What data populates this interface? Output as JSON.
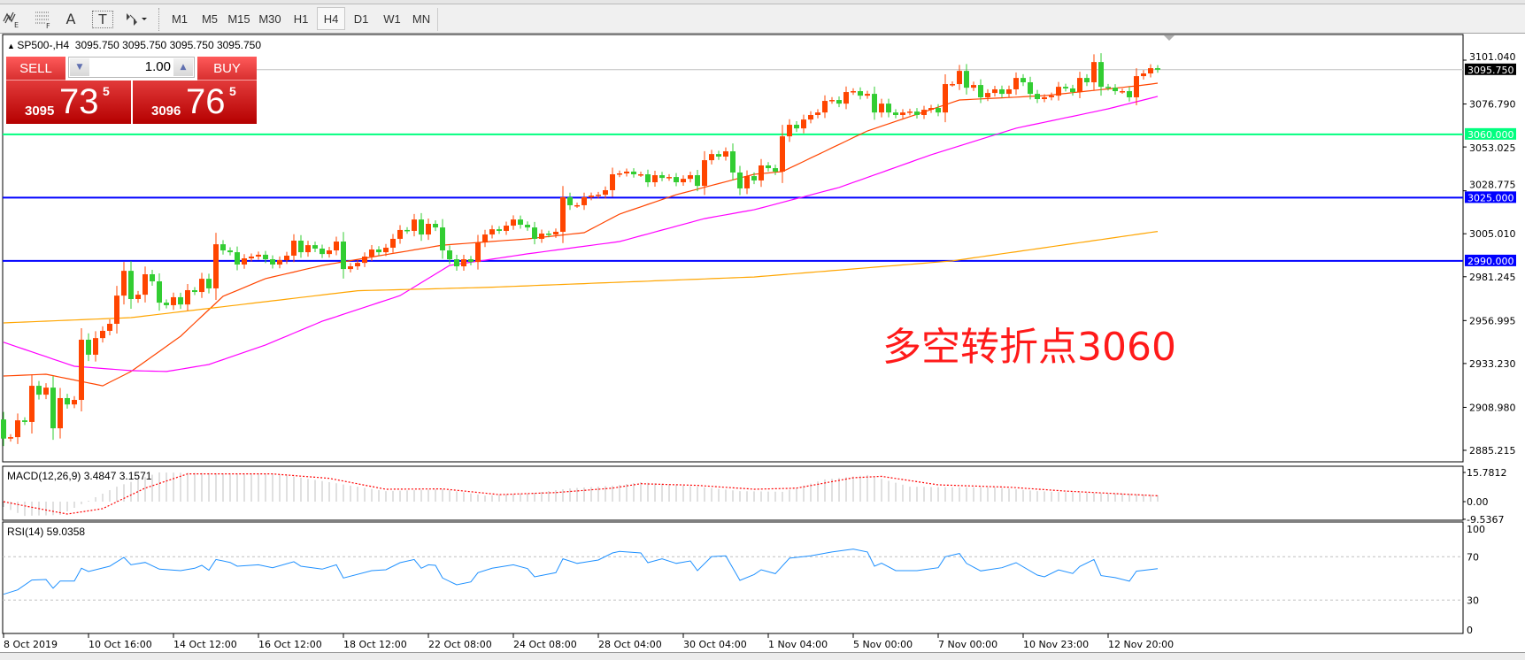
{
  "toolbar": {
    "icons": [
      "elliott-wave-icon",
      "fibonacci-icon",
      "text-label-icon",
      "text-box-icon",
      "arrows-dropdown-icon"
    ],
    "text_icon_label": "A",
    "textbox_icon_label": "T",
    "timeframes": [
      "M1",
      "M5",
      "M15",
      "M30",
      "H1",
      "H4",
      "D1",
      "W1",
      "MN"
    ],
    "active_timeframe": "H4"
  },
  "chart": {
    "title": "SP500-,H4  3095.750 3095.750 3095.750 3095.750",
    "symbol": "SP500-",
    "period": "H4",
    "overlay_text": "多空转折点3060"
  },
  "trade_panel": {
    "sell_label": "SELL",
    "buy_label": "BUY",
    "lot": "1.00",
    "sell_price": {
      "prefix": "3095",
      "big": "73",
      "sup": "5"
    },
    "buy_price": {
      "prefix": "3096",
      "big": "76",
      "sup": "5"
    }
  },
  "colors": {
    "bull_candle": "#ff4500",
    "bear_candle": "#32cd32",
    "ma_fast": "#ff4500",
    "ma_mid": "#ff00ff",
    "ma_slow": "#ffa500",
    "level_3060": "#00ff7f",
    "level_blue": "#0000ff",
    "macd_hist": "#c0c0c0",
    "macd_signal": "#ff0000",
    "rsi_line": "#1e90ff"
  },
  "chart_data": [
    {
      "type": "candlestick",
      "title": "SP500-,H4",
      "first_open": 2902.3,
      "closes": [
        2891.7,
        2892.5,
        2901.8,
        2900.9,
        2920.9,
        2916.0,
        2919.9,
        2897.4,
        2914.1,
        2910.6,
        2913.1,
        2946.4,
        2938.1,
        2947.3,
        2951.3,
        2955.2,
        2970.8,
        2984.5,
        2968.9,
        2971.3,
        2982.6,
        2978.7,
        2966.9,
        2965.5,
        2969.9,
        2965.9,
        2973.8,
        2972.8,
        2980.1,
        2974.8,
        2999.2,
        2995.8,
        2994.8,
        2988.0,
        2991.4,
        2992.4,
        2993.4,
        2990.9,
        2988.0,
        2990.4,
        2992.9,
        3001.2,
        2994.8,
        2998.7,
        2996.8,
        2993.8,
        2995.8,
        3000.7,
        2985.5,
        2987.0,
        2988.9,
        2992.4,
        2996.3,
        2994.8,
        2997.3,
        3002.2,
        3007.1,
        3006.6,
        3012.9,
        3004.6,
        3010.5,
        3008.5,
        2995.8,
        2990.9,
        2987.0,
        2990.9,
        2989.4,
        3000.2,
        3004.6,
        3007.5,
        3006.6,
        3009.5,
        3012.9,
        3010.0,
        3008.5,
        3002.2,
        3005.1,
        3004.6,
        3006.1,
        3025.2,
        3020.8,
        3020.8,
        3025.2,
        3026.1,
        3026.6,
        3029.1,
        3037.9,
        3038.4,
        3039.4,
        3037.9,
        3037.9,
        3033.5,
        3037.4,
        3035.9,
        3036.4,
        3033.5,
        3035.4,
        3037.4,
        3031.5,
        3045.7,
        3049.1,
        3047.7,
        3050.6,
        3038.9,
        3030.1,
        3036.9,
        3034.5,
        3042.8,
        3041.3,
        3039.4,
        3058.9,
        3065.3,
        3063.3,
        3068.2,
        3070.7,
        3072.1,
        3078.5,
        3079.0,
        3077.0,
        3083.4,
        3083.9,
        3081.4,
        3082.4,
        3072.1,
        3077.0,
        3072.1,
        3070.7,
        3072.1,
        3072.6,
        3070.7,
        3073.6,
        3074.6,
        3072.1,
        3087.8,
        3087.8,
        3095.1,
        3085.8,
        3087.3,
        3080.5,
        3082.9,
        3084.9,
        3082.4,
        3084.9,
        3091.2,
        3088.8,
        3082.4,
        3079.5,
        3080.5,
        3081.4,
        3086.3,
        3085.4,
        3083.4,
        3091.2,
        3088.8,
        3100.0,
        3086.3,
        3085.8,
        3083.9,
        3083.9,
        3080.5,
        3092.2,
        3093.7,
        3096.6,
        3095.75
      ],
      "moving_averages": [
        {
          "color_key": "ma_fast",
          "points": [
            [
              0,
              2926.3
            ],
            [
              6,
              2927.3
            ],
            [
              14,
              2920.9
            ],
            [
              18,
              2928.8
            ],
            [
              25,
              2948.3
            ],
            [
              31,
              2970.4
            ],
            [
              37,
              2980.2
            ],
            [
              45,
              2987.5
            ],
            [
              56,
              2994.8
            ],
            [
              62,
              2998.7
            ],
            [
              74,
              3002.2
            ],
            [
              82,
              3005.6
            ],
            [
              87,
              3015.9
            ],
            [
              95,
              3026.6
            ],
            [
              106,
              3037.9
            ],
            [
              110,
              3039.4
            ],
            [
              122,
              3061.9
            ],
            [
              135,
              3079.0
            ],
            [
              147,
              3081.4
            ],
            [
              160,
              3086.8
            ],
            [
              163,
              3088.3
            ]
          ]
        },
        {
          "color_key": "ma_mid",
          "points": [
            [
              0,
              2945.0
            ],
            [
              10,
              2931.7
            ],
            [
              18,
              2929.3
            ],
            [
              23,
              2928.8
            ],
            [
              29,
              2932.7
            ],
            [
              37,
              2943.5
            ],
            [
              45,
              2956.6
            ],
            [
              56,
              2970.8
            ],
            [
              63,
              2987.5
            ],
            [
              74,
              2993.9
            ],
            [
              87,
              3000.7
            ],
            [
              99,
              3013.4
            ],
            [
              106,
              3018.3
            ],
            [
              118,
              3030.6
            ],
            [
              131,
              3048.7
            ],
            [
              143,
              3063.4
            ],
            [
              156,
              3074.1
            ],
            [
              163,
              3081.0
            ]
          ]
        },
        {
          "color_key": "ma_slow",
          "points": [
            [
              0,
              2955.7
            ],
            [
              18,
              2958.6
            ],
            [
              50,
              2973.5
            ],
            [
              68,
              2975.3
            ],
            [
              87,
              2978.2
            ],
            [
              106,
              2981.1
            ],
            [
              134,
              2990.0
            ],
            [
              163,
              3006.3
            ]
          ]
        }
      ],
      "levels": [
        {
          "value": 3095.75,
          "label": "3095.750",
          "kind": "bid"
        },
        {
          "value": 3060.0,
          "label": "3060.000",
          "color_key": "level_3060"
        },
        {
          "value": 3025.0,
          "label": "3025.000",
          "color_key": "level_blue"
        },
        {
          "value": 2990.0,
          "label": "2990.000",
          "color_key": "level_blue"
        }
      ],
      "y_ticks": [
        "3101.040",
        "3076.790",
        "3053.025",
        "3028.775",
        "3005.010",
        "2981.245",
        "2956.995",
        "2933.230",
        "2908.980",
        "2885.215"
      ],
      "x_ticks": [
        {
          "bar": 0,
          "label": "8 Oct 2019"
        },
        {
          "bar": 12,
          "label": "10 Oct 16:00"
        },
        {
          "bar": 24,
          "label": "14 Oct 12:00"
        },
        {
          "bar": 36,
          "label": "16 Oct 12:00"
        },
        {
          "bar": 48,
          "label": "18 Oct 12:00"
        },
        {
          "bar": 60,
          "label": "22 Oct 08:00"
        },
        {
          "bar": 72,
          "label": "24 Oct 08:00"
        },
        {
          "bar": 84,
          "label": "28 Oct 04:00"
        },
        {
          "bar": 96,
          "label": "30 Oct 04:00"
        },
        {
          "bar": 108,
          "label": "1 Nov 04:00"
        },
        {
          "bar": 120,
          "label": "5 Nov 00:00"
        },
        {
          "bar": 132,
          "label": "7 Nov 00:00"
        },
        {
          "bar": 144,
          "label": "10 Nov 23:00"
        },
        {
          "bar": 156,
          "label": "12 Nov 20:00"
        }
      ]
    },
    {
      "type": "bar",
      "title": "MACD(12,26,9) 3.4847 3.1571",
      "ylim": [
        -9.5367,
        15.7812
      ],
      "y_ticks": [
        "15.7812",
        "0.00",
        "-9.5367"
      ],
      "histogram": [
        [
          0,
          -2.9
        ],
        [
          3,
          -7.7
        ],
        [
          8,
          -7.2
        ],
        [
          11,
          -1.4
        ],
        [
          16,
          8.1
        ],
        [
          22,
          15.8
        ],
        [
          30,
          15.3
        ],
        [
          38,
          15.3
        ],
        [
          46,
          10.5
        ],
        [
          54,
          5.7
        ],
        [
          62,
          6.7
        ],
        [
          68,
          3.3
        ],
        [
          74,
          4.3
        ],
        [
          80,
          7.2
        ],
        [
          86,
          8.6
        ],
        [
          90,
          10.5
        ],
        [
          98,
          8.1
        ],
        [
          104,
          5.7
        ],
        [
          110,
          5.3
        ],
        [
          116,
          12.0
        ],
        [
          122,
          14.4
        ],
        [
          128,
          8.1
        ],
        [
          134,
          7.7
        ],
        [
          140,
          7.7
        ],
        [
          146,
          5.7
        ],
        [
          152,
          4.8
        ],
        [
          158,
          4.3
        ],
        [
          163,
          3.4847
        ]
      ],
      "signal": [
        [
          0,
          0
        ],
        [
          5,
          -3.8
        ],
        [
          9,
          -6.7
        ],
        [
          14,
          -3.8
        ],
        [
          20,
          7.3
        ],
        [
          26,
          15.0
        ],
        [
          38,
          15.0
        ],
        [
          46,
          12.6
        ],
        [
          54,
          6.7
        ],
        [
          62,
          6.9
        ],
        [
          70,
          3.8
        ],
        [
          78,
          4.9
        ],
        [
          86,
          7.3
        ],
        [
          90,
          9.7
        ],
        [
          98,
          8.8
        ],
        [
          106,
          6.7
        ],
        [
          112,
          7.3
        ],
        [
          120,
          12.9
        ],
        [
          124,
          13.7
        ],
        [
          132,
          9.1
        ],
        [
          142,
          7.8
        ],
        [
          150,
          5.7
        ],
        [
          163,
          3.1571
        ]
      ]
    },
    {
      "type": "line",
      "title": "RSI(14) 59.0358",
      "ylim": [
        0,
        100
      ],
      "y_ticks": [
        "100",
        "70",
        "30",
        "0"
      ],
      "levels": [
        70,
        30
      ],
      "values": [
        [
          0,
          35.4
        ],
        [
          2,
          39.5
        ],
        [
          4,
          48.5
        ],
        [
          6,
          49.0
        ],
        [
          7,
          40.9
        ],
        [
          8,
          47.6
        ],
        [
          10,
          47.6
        ],
        [
          11,
          59.4
        ],
        [
          12,
          56.4
        ],
        [
          15,
          61.3
        ],
        [
          17,
          69.4
        ],
        [
          18,
          62.6
        ],
        [
          20,
          64.8
        ],
        [
          22,
          58.6
        ],
        [
          25,
          57.2
        ],
        [
          27,
          59.4
        ],
        [
          28,
          62.1
        ],
        [
          29,
          57.6
        ],
        [
          30,
          67.5
        ],
        [
          32,
          64.8
        ],
        [
          33,
          61.3
        ],
        [
          36,
          62.6
        ],
        [
          38,
          59.9
        ],
        [
          41,
          65.4
        ],
        [
          42,
          61.3
        ],
        [
          45,
          58.6
        ],
        [
          47,
          62.6
        ],
        [
          48,
          50.4
        ],
        [
          52,
          57.2
        ],
        [
          54,
          58.0
        ],
        [
          56,
          64.5
        ],
        [
          58,
          67.5
        ],
        [
          59,
          59.4
        ],
        [
          60,
          62.6
        ],
        [
          61,
          62.1
        ],
        [
          62,
          50.4
        ],
        [
          64,
          44.1
        ],
        [
          66,
          46.8
        ],
        [
          67,
          55.3
        ],
        [
          69,
          59.4
        ],
        [
          72,
          62.6
        ],
        [
          74,
          59.1
        ],
        [
          75,
          51.5
        ],
        [
          78,
          55.3
        ],
        [
          79,
          68.1
        ],
        [
          81,
          63.9
        ],
        [
          84,
          67.0
        ],
        [
          86,
          73.5
        ],
        [
          87,
          74.9
        ],
        [
          90,
          73.5
        ],
        [
          91,
          64.5
        ],
        [
          93,
          68.1
        ],
        [
          95,
          63.9
        ],
        [
          97,
          66.2
        ],
        [
          98,
          57.2
        ],
        [
          100,
          70.2
        ],
        [
          102,
          70.8
        ],
        [
          104,
          48.2
        ],
        [
          106,
          53.6
        ],
        [
          107,
          58.0
        ],
        [
          109,
          54.4
        ],
        [
          111,
          68.7
        ],
        [
          114,
          70.8
        ],
        [
          117,
          74.4
        ],
        [
          120,
          77.1
        ],
        [
          122,
          74.4
        ],
        [
          123,
          61.3
        ],
        [
          124,
          64.0
        ],
        [
          126,
          57.2
        ],
        [
          129,
          57.2
        ],
        [
          132,
          59.9
        ],
        [
          133,
          70.0
        ],
        [
          135,
          73.0
        ],
        [
          136,
          63.9
        ],
        [
          138,
          56.9
        ],
        [
          141,
          59.9
        ],
        [
          143,
          64.5
        ],
        [
          146,
          53.1
        ],
        [
          147,
          51.5
        ],
        [
          149,
          57.8
        ],
        [
          151,
          54.6
        ],
        [
          152,
          61.0
        ],
        [
          154,
          67.5
        ],
        [
          155,
          52.6
        ],
        [
          157,
          50.7
        ],
        [
          159,
          47.5
        ],
        [
          160,
          56.7
        ],
        [
          163,
          59.0358
        ]
      ]
    }
  ]
}
